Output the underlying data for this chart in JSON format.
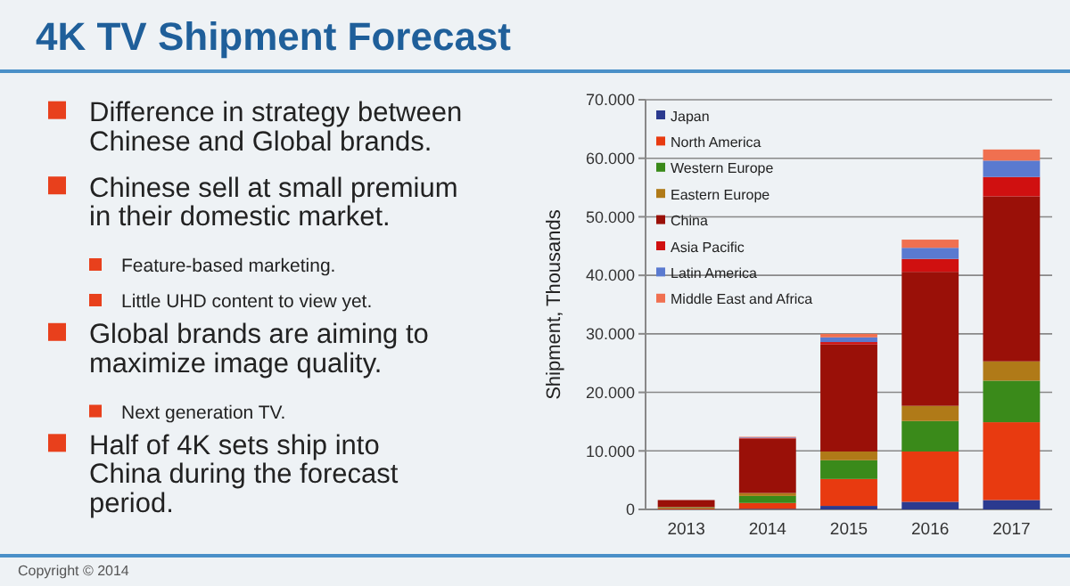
{
  "chart_data": {
    "type": "bar",
    "title": "4K TV Shipment Forecast",
    "ylabel": "Shipment, Thousands",
    "stacked": true,
    "categories": [
      "2013",
      "2014",
      "2015",
      "2016",
      "2017"
    ],
    "series": [
      {
        "name": "Japan",
        "color": "#2b3a8f",
        "values": [
          0,
          100,
          600,
          1300,
          1600
        ]
      },
      {
        "name": "North America",
        "color": "#e83a10",
        "values": [
          200,
          1000,
          4600,
          8600,
          13300
        ]
      },
      {
        "name": "Western Europe",
        "color": "#3a8a1a",
        "values": [
          100,
          1200,
          3200,
          5200,
          7100
        ]
      },
      {
        "name": "Eastern Europe",
        "color": "#b07a18",
        "values": [
          100,
          500,
          1500,
          2600,
          3300
        ]
      },
      {
        "name": "China",
        "color": "#9a1008",
        "values": [
          1200,
          9300,
          18300,
          22900,
          28200
        ]
      },
      {
        "name": "Asia Pacific",
        "color": "#d01010",
        "values": [
          0,
          100,
          400,
          2200,
          3300
        ]
      },
      {
        "name": "Latin America",
        "color": "#5a7ad0",
        "values": [
          0,
          100,
          800,
          1900,
          2800
        ]
      },
      {
        "name": "Middle East and Africa",
        "color": "#f07050",
        "values": [
          0,
          100,
          600,
          1400,
          1900
        ]
      }
    ],
    "ylim": [
      0,
      70000
    ],
    "yticks": [
      {
        "value": 0,
        "label": "0"
      },
      {
        "value": 10000,
        "label": "10.000"
      },
      {
        "value": 20000,
        "label": "20.000"
      },
      {
        "value": 30000,
        "label": "30.000"
      },
      {
        "value": 40000,
        "label": "40.000"
      },
      {
        "value": 50000,
        "label": "50.000"
      },
      {
        "value": 60000,
        "label": "60.000"
      },
      {
        "value": 70000,
        "label": "70.000"
      }
    ],
    "grid": "y",
    "legend": "top left",
    "annotations": [
      "Difference in strategy between Chinese and Global brands.",
      "Chinese sell at small premium in their domestic market.",
      "Feature-based marketing.",
      "Little UHD content to view yet.",
      "Global brands are aiming to maximize image quality.",
      "Next generation TV.",
      "Half of 4K sets ship into China during the forecast period.",
      "Copyright © 2014"
    ]
  }
}
